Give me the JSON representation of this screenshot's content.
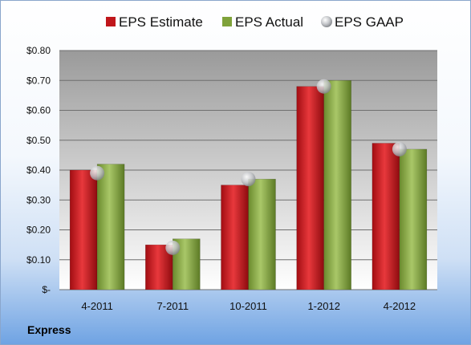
{
  "chart_data": {
    "type": "bar",
    "categories": [
      "4-2011",
      "7-2011",
      "10-2011",
      "1-2012",
      "4-2012"
    ],
    "series": [
      {
        "name": "EPS Estimate",
        "values": [
          0.4,
          0.15,
          0.35,
          0.68,
          0.49
        ],
        "color": "#c0161b"
      },
      {
        "name": "EPS Actual",
        "values": [
          0.42,
          0.17,
          0.37,
          0.7,
          0.47
        ],
        "color": "#7fa23a"
      },
      {
        "name": "EPS GAAP",
        "values": [
          0.39,
          0.14,
          0.37,
          0.68,
          0.47
        ],
        "color": "#b9bcc0",
        "marker": "sphere"
      }
    ],
    "y_ticks": [
      "$-",
      "$0.10",
      "$0.20",
      "$0.30",
      "$0.40",
      "$0.50",
      "$0.60",
      "$0.70",
      "$0.80"
    ],
    "ylim": [
      0,
      0.8
    ],
    "grid": true,
    "legend_position": "top"
  },
  "company": "Express"
}
